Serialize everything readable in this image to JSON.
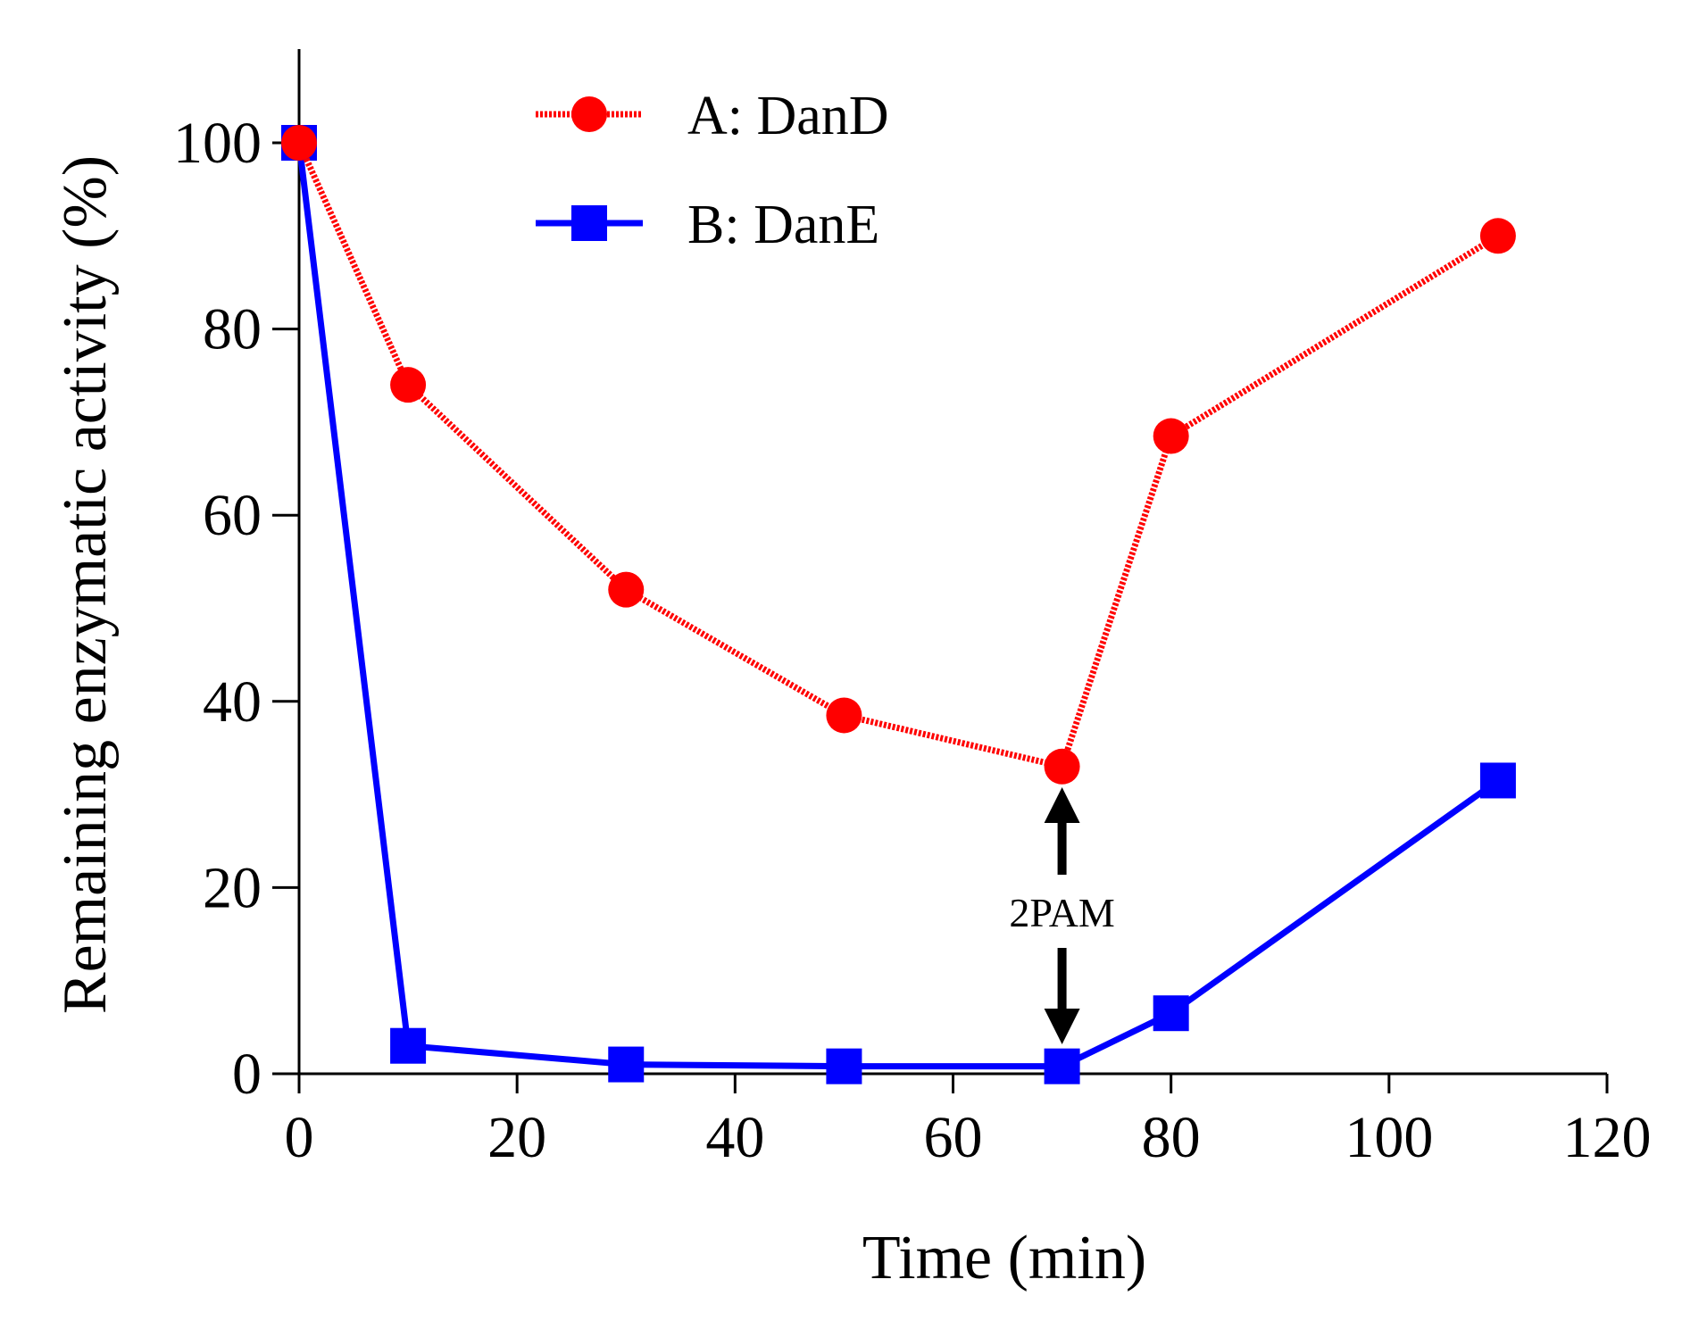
{
  "chart_data": {
    "type": "line",
    "title": "",
    "xlabel": "Time (min)",
    "ylabel": "Remaining enzymatic activity (%)",
    "xlim": [
      0,
      120
    ],
    "ylim": [
      0,
      100
    ],
    "xticks": [
      0,
      20,
      40,
      60,
      80,
      100,
      120
    ],
    "yticks": [
      0,
      20,
      40,
      60,
      80,
      100
    ],
    "grid": false,
    "legend_position": "top-center",
    "series": [
      {
        "name": "A: DanD",
        "marker": "circle",
        "line_style": "dotted",
        "color": "#ff0000",
        "x": [
          0,
          10,
          30,
          50,
          70,
          80,
          110
        ],
        "y": [
          100,
          74,
          52,
          38.5,
          33,
          68.5,
          90
        ]
      },
      {
        "name": "B: DanE",
        "marker": "square",
        "line_style": "solid",
        "color": "#0000ff",
        "x": [
          0,
          10,
          30,
          50,
          70,
          80,
          110
        ],
        "y": [
          100,
          3,
          1,
          0.8,
          0.8,
          6.5,
          31.5
        ]
      }
    ],
    "annotations": [
      {
        "text": "2PAM",
        "x": 70,
        "arrow": "double-vertical"
      }
    ]
  }
}
